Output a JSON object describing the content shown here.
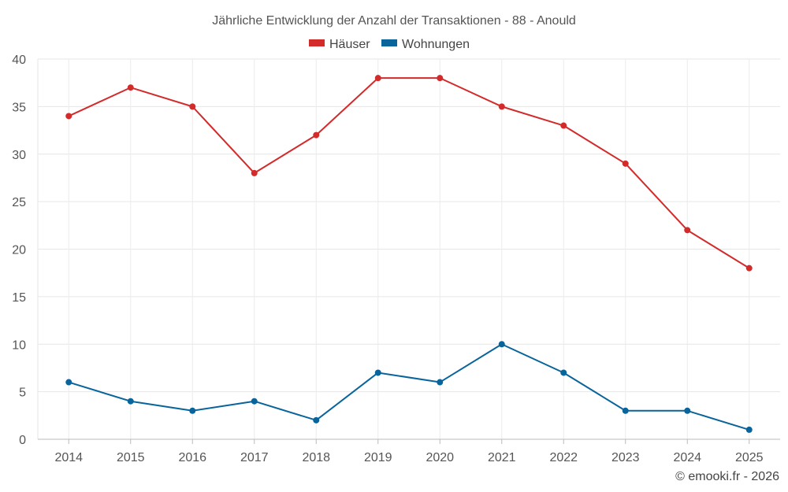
{
  "chart_data": {
    "type": "line",
    "title": "Jährliche Entwicklung der Anzahl der Transaktionen - 88 - Anould",
    "categories": [
      "2014",
      "2015",
      "2016",
      "2017",
      "2018",
      "2019",
      "2020",
      "2021",
      "2022",
      "2023",
      "2024",
      "2025"
    ],
    "series": [
      {
        "name": "Häuser",
        "color": "#d32a2a",
        "values": [
          34,
          37,
          35,
          28,
          32,
          38,
          38,
          35,
          33,
          29,
          22,
          18
        ]
      },
      {
        "name": "Wohnungen",
        "color": "#08649b",
        "values": [
          6,
          4,
          3,
          4,
          2,
          7,
          6,
          10,
          7,
          3,
          3,
          1
        ]
      }
    ],
    "ylim": [
      0,
      40
    ],
    "yticks": [
      0,
      5,
      10,
      15,
      20,
      25,
      30,
      35,
      40
    ],
    "xlabel": "",
    "ylabel": "",
    "grid": true,
    "legend": "top-center"
  },
  "credit": "© emooki.fr - 2026"
}
